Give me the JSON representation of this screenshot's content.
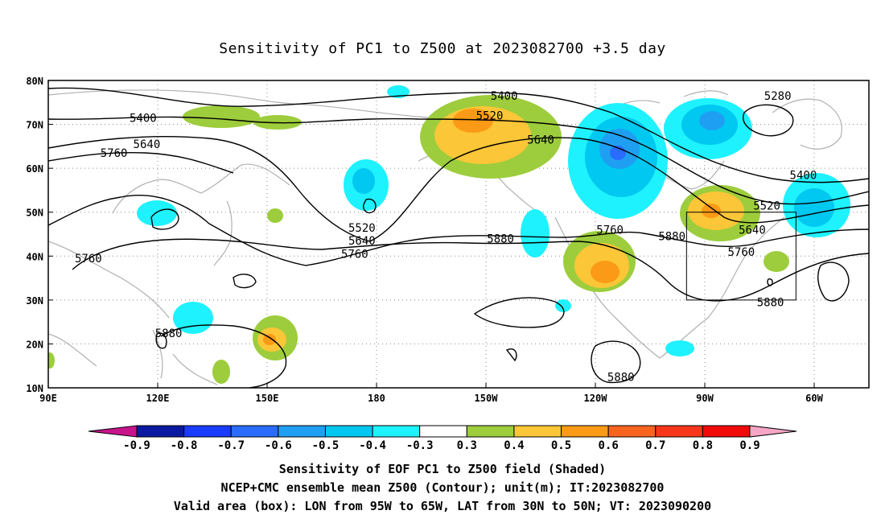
{
  "title": "Sensitivity of PC1 to Z500 at 2023082700 +3.5 day",
  "captions": {
    "line1": "Sensitivity of EOF PC1 to Z500 field (Shaded)",
    "line2": "NCEP+CMC ensemble mean Z500 (Contour); unit(m); IT:2023082700",
    "line3": "Valid area (box): LON from 95W to 65W, LAT from 30N to 50N; VT: 2023090200"
  },
  "axes": {
    "lat_labels": [
      "80N",
      "70N",
      "60N",
      "50N",
      "40N",
      "30N",
      "20N",
      "10N"
    ],
    "lat_values": [
      80,
      70,
      60,
      50,
      40,
      30,
      20,
      10
    ],
    "lon_labels": [
      "90E",
      "120E",
      "150E",
      "180",
      "150W",
      "120W",
      "90W",
      "60W"
    ],
    "lon_values": [
      90,
      120,
      150,
      180,
      210,
      240,
      270,
      300
    ],
    "lon_range": [
      90,
      315
    ],
    "lat_range": [
      10,
      80
    ]
  },
  "colorbar": {
    "labels": [
      "-0.9",
      "-0.8",
      "-0.7",
      "-0.6",
      "-0.5",
      "-0.4",
      "-0.3",
      "0.3",
      "0.4",
      "0.5",
      "0.6",
      "0.7",
      "0.8",
      "0.9"
    ],
    "colors": [
      "#0a1aa0",
      "#1a3cff",
      "#2a6cff",
      "#1f9ff2",
      "#00c8f0",
      "#1ef2ff",
      "#ffffff",
      "#9dcd3c",
      "#fbc637",
      "#fb9a16",
      "#fb641e",
      "#f8361a",
      "#f00a0a"
    ],
    "low_end_color": "#c8148c",
    "high_end_color": "#f7a6c8"
  },
  "contour_labels": [
    {
      "text": "5400",
      "lon": 116,
      "lat": 71.5
    },
    {
      "text": "5640",
      "lon": 117,
      "lat": 65.5
    },
    {
      "text": "5760",
      "lon": 108,
      "lat": 63.5
    },
    {
      "text": "5760",
      "lon": 101,
      "lat": 39.5
    },
    {
      "text": "5880",
      "lon": 123,
      "lat": 22.5
    },
    {
      "text": "5520",
      "lon": 176,
      "lat": 46.5
    },
    {
      "text": "5640",
      "lon": 176,
      "lat": 43.5
    },
    {
      "text": "5760",
      "lon": 174,
      "lat": 40.5
    },
    {
      "text": "5880",
      "lon": 214,
      "lat": 44.0
    },
    {
      "text": "5400",
      "lon": 215,
      "lat": 76.5
    },
    {
      "text": "5520",
      "lon": 211,
      "lat": 72.0
    },
    {
      "text": "5640",
      "lon": 225,
      "lat": 66.5
    },
    {
      "text": "5760",
      "lon": 244,
      "lat": 46.0
    },
    {
      "text": "5880",
      "lon": 261,
      "lat": 44.5
    },
    {
      "text": "5280",
      "lon": 290,
      "lat": 76.5
    },
    {
      "text": "5400",
      "lon": 297,
      "lat": 58.5
    },
    {
      "text": "5520",
      "lon": 287,
      "lat": 51.5
    },
    {
      "text": "5640",
      "lon": 283,
      "lat": 46.0
    },
    {
      "text": "5760",
      "lon": 280,
      "lat": 41.0
    },
    {
      "text": "5880",
      "lon": 288,
      "lat": 29.5
    },
    {
      "text": "5880",
      "lon": 247,
      "lat": 12.5
    }
  ],
  "valid_box": {
    "lon_min": 265,
    "lon_max": 295,
    "lat_min": 30,
    "lat_max": 50
  }
}
